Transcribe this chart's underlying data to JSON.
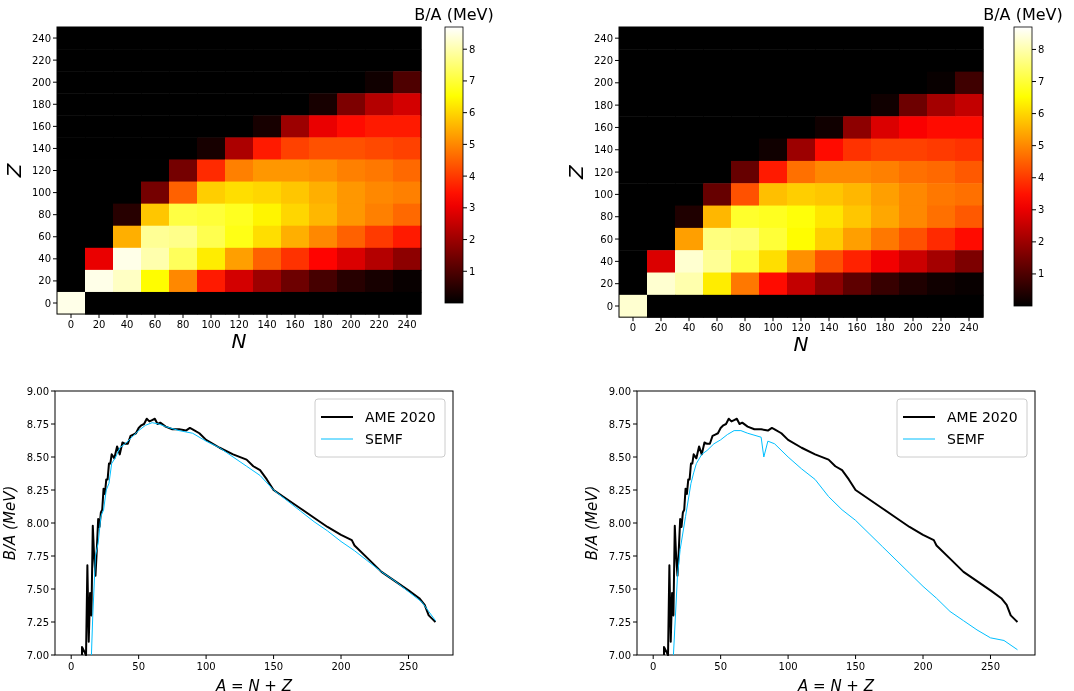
{
  "chart_data": [
    {
      "type": "heatmap",
      "xlabel": "N",
      "ylabel": "Z",
      "clabel": "B/A (MeV)",
      "categories": [
        "0",
        "20",
        "40",
        "60",
        "80",
        "100",
        "120",
        "140",
        "160",
        "180",
        "200",
        "220",
        "240"
      ],
      "y_categories": [
        "240",
        "220",
        "200",
        "180",
        "160",
        "140",
        "120",
        "100",
        "80",
        "60",
        "40",
        "20",
        "0"
      ],
      "clim": [
        0,
        8.7
      ],
      "cticks": [
        1,
        2,
        3,
        4,
        5,
        6,
        7,
        8
      ],
      "cells": [
        [
          0,
          0,
          0,
          0,
          0,
          0,
          0,
          0,
          0,
          0,
          0,
          0,
          0
        ],
        [
          0,
          0,
          0,
          0,
          0,
          0,
          0,
          0,
          0,
          0,
          0,
          0,
          0
        ],
        [
          0,
          0,
          0,
          0,
          0,
          0,
          0,
          0,
          0,
          0,
          0,
          0.2,
          1.0
        ],
        [
          0,
          0,
          0,
          0,
          0,
          0,
          0,
          0,
          0,
          0.3,
          1.6,
          2.3,
          2.7
        ],
        [
          0,
          0,
          0,
          0,
          0,
          0,
          0,
          0.3,
          2.0,
          3.0,
          3.4,
          3.6,
          3.6
        ],
        [
          0,
          0,
          0,
          0,
          0,
          0.3,
          2.2,
          3.6,
          4.1,
          4.3,
          4.3,
          4.2,
          4.1
        ],
        [
          0,
          0,
          0,
          0,
          1.5,
          3.8,
          4.9,
          5.2,
          5.2,
          5.1,
          4.9,
          4.8,
          4.6
        ],
        [
          0,
          0,
          0,
          1.5,
          4.5,
          5.9,
          6.1,
          6.0,
          5.8,
          5.5,
          5.2,
          5.0,
          4.9
        ],
        [
          0,
          0,
          0.5,
          5.8,
          7.1,
          7.0,
          6.8,
          6.4,
          6.0,
          5.6,
          5.2,
          4.9,
          4.6
        ],
        [
          0,
          0,
          5.5,
          7.8,
          7.7,
          7.2,
          6.7,
          6.1,
          5.5,
          5.0,
          4.5,
          4.0,
          3.6
        ],
        [
          0,
          3.0,
          8.5,
          8.0,
          7.3,
          6.3,
          5.3,
          4.5,
          3.9,
          3.3,
          2.8,
          2.3,
          1.8
        ],
        [
          0,
          8.5,
          8.2,
          6.5,
          5.0,
          3.6,
          2.7,
          2.0,
          1.4,
          0.9,
          0.5,
          0.3,
          0.1
        ],
        [
          8.5,
          0,
          0,
          0,
          0,
          0,
          0,
          0,
          0,
          0,
          0,
          0,
          0
        ]
      ]
    },
    {
      "type": "heatmap",
      "xlabel": "N",
      "ylabel": "Z",
      "clabel": "B/A (MeV)",
      "categories": [
        "0",
        "20",
        "40",
        "60",
        "80",
        "100",
        "120",
        "140",
        "160",
        "180",
        "200",
        "220",
        "240"
      ],
      "y_categories": [
        "240",
        "220",
        "200",
        "180",
        "160",
        "140",
        "120",
        "100",
        "80",
        "60",
        "40",
        "20",
        "0"
      ],
      "clim": [
        0,
        8.7
      ],
      "cticks": [
        1,
        2,
        3,
        4,
        5,
        6,
        7,
        8
      ],
      "cells": [
        [
          0,
          0,
          0,
          0,
          0,
          0,
          0,
          0,
          0,
          0,
          0,
          0,
          0
        ],
        [
          0,
          0,
          0,
          0,
          0,
          0,
          0,
          0,
          0,
          0,
          0,
          0,
          0
        ],
        [
          0,
          0,
          0,
          0,
          0,
          0,
          0,
          0,
          0,
          0,
          0,
          0.1,
          0.8
        ],
        [
          0,
          0,
          0,
          0,
          0,
          0,
          0,
          0,
          0,
          0.2,
          1.4,
          2.1,
          2.5
        ],
        [
          0,
          0,
          0,
          0,
          0,
          0,
          0,
          0.2,
          1.8,
          2.8,
          3.2,
          3.4,
          3.4
        ],
        [
          0,
          0,
          0,
          0,
          0,
          0.2,
          2.0,
          3.4,
          3.9,
          4.1,
          4.1,
          4.0,
          3.9
        ],
        [
          0,
          0,
          0,
          0,
          1.3,
          3.6,
          4.7,
          5.0,
          5.0,
          4.9,
          4.7,
          4.6,
          4.4
        ],
        [
          0,
          0,
          0,
          1.3,
          4.3,
          5.7,
          5.9,
          5.8,
          5.6,
          5.3,
          5.0,
          4.8,
          4.7
        ],
        [
          0,
          0,
          0.4,
          5.6,
          6.9,
          6.8,
          6.6,
          6.2,
          5.8,
          5.4,
          5.0,
          4.7,
          4.4
        ],
        [
          0,
          0,
          5.3,
          7.6,
          7.5,
          7.0,
          6.5,
          5.9,
          5.3,
          4.8,
          4.3,
          3.8,
          3.4
        ],
        [
          0,
          2.8,
          8.3,
          7.8,
          7.1,
          6.1,
          5.1,
          4.3,
          3.7,
          3.1,
          2.6,
          2.1,
          1.6
        ],
        [
          0,
          8.3,
          8.0,
          6.3,
          4.8,
          3.4,
          2.5,
          1.8,
          1.2,
          0.7,
          0.4,
          0.2,
          0.1
        ],
        [
          8.3,
          0,
          0,
          0,
          0,
          0,
          0,
          0,
          0,
          0,
          0,
          0,
          0
        ]
      ]
    },
    {
      "type": "line",
      "xlabel": "A = N + Z",
      "ylabel": "B/A (MeV)",
      "xlim": [
        -12,
        283
      ],
      "xticks": [
        0,
        50,
        100,
        150,
        200,
        250
      ],
      "ylim": [
        7,
        9
      ],
      "yticks": [
        {
          "value": 7,
          "label": "7.00"
        },
        {
          "value": 7.25,
          "label": "7.25"
        },
        {
          "value": 7.5,
          "label": "7.50"
        },
        {
          "value": 7.75,
          "label": "7.75"
        },
        {
          "value": 8,
          "label": "8.00"
        },
        {
          "value": 8.25,
          "label": "8.25"
        },
        {
          "value": 8.5,
          "label": "8.50"
        },
        {
          "value": 8.75,
          "label": "8.75"
        },
        {
          "value": 9,
          "label": "9.00"
        }
      ],
      "legend": "top right",
      "grid": false,
      "series": [
        {
          "name": "AME 2020",
          "color": "#000000",
          "x": [
            8,
            8,
            11,
            12,
            13,
            14,
            15,
            16,
            17,
            18,
            19,
            20,
            21,
            22,
            23,
            24,
            25,
            26,
            27,
            28,
            29,
            30,
            32,
            34,
            36,
            38,
            40,
            42,
            44,
            46,
            48,
            50,
            52,
            54,
            56,
            58,
            60,
            62,
            64,
            66,
            70,
            75,
            80,
            85,
            88,
            90,
            95,
            100,
            110,
            120,
            130,
            135,
            140,
            145,
            150,
            160,
            170,
            180,
            190,
            200,
            208,
            210,
            220,
            230,
            240,
            250,
            258,
            262,
            265,
            268,
            270
          ],
          "values": [
            7.0,
            7.06,
            7.0,
            7.68,
            7.1,
            7.47,
            7.3,
            7.98,
            7.75,
            7.6,
            7.8,
            8.03,
            7.97,
            8.08,
            8.1,
            8.26,
            8.22,
            8.33,
            8.33,
            8.45,
            8.45,
            8.52,
            8.49,
            8.58,
            8.52,
            8.61,
            8.6,
            8.6,
            8.66,
            8.67,
            8.68,
            8.72,
            8.74,
            8.75,
            8.79,
            8.77,
            8.78,
            8.79,
            8.75,
            8.76,
            8.73,
            8.71,
            8.71,
            8.7,
            8.72,
            8.71,
            8.68,
            8.63,
            8.57,
            8.52,
            8.48,
            8.43,
            8.4,
            8.33,
            8.25,
            8.18,
            8.11,
            8.04,
            7.97,
            7.91,
            7.87,
            7.83,
            7.73,
            7.63,
            7.56,
            7.49,
            7.43,
            7.38,
            7.3,
            7.27,
            7.25
          ]
        },
        {
          "name": "SEMF",
          "color": "#00bfff",
          "x": [
            15,
            16,
            18,
            20,
            22,
            24,
            26,
            28,
            30,
            33,
            36,
            40,
            45,
            50,
            55,
            60,
            65,
            70,
            80,
            90,
            100,
            110,
            120,
            130,
            140,
            150,
            160,
            170,
            180,
            190,
            200,
            210,
            220,
            230,
            240,
            250,
            260,
            265,
            270
          ],
          "values": [
            7.0,
            7.3,
            7.75,
            7.85,
            8.05,
            8.1,
            8.25,
            8.3,
            8.45,
            8.5,
            8.57,
            8.6,
            8.65,
            8.7,
            8.74,
            8.76,
            8.75,
            8.73,
            8.7,
            8.68,
            8.62,
            8.57,
            8.5,
            8.43,
            8.36,
            8.25,
            8.17,
            8.09,
            8.01,
            7.94,
            7.86,
            7.79,
            7.71,
            7.63,
            7.56,
            7.48,
            7.4,
            7.33,
            7.26
          ]
        }
      ]
    },
    {
      "type": "line",
      "xlabel": "A = N + Z",
      "ylabel": "B/A (MeV)",
      "xlim": [
        -12,
        283
      ],
      "xticks": [
        0,
        50,
        100,
        150,
        200,
        250
      ],
      "ylim": [
        7,
        9
      ],
      "yticks": [
        {
          "value": 7,
          "label": "7.00"
        },
        {
          "value": 7.25,
          "label": "7.25"
        },
        {
          "value": 7.5,
          "label": "7.50"
        },
        {
          "value": 7.75,
          "label": "7.75"
        },
        {
          "value": 8,
          "label": "8.00"
        },
        {
          "value": 8.25,
          "label": "8.25"
        },
        {
          "value": 8.5,
          "label": "8.50"
        },
        {
          "value": 8.75,
          "label": "8.75"
        },
        {
          "value": 9,
          "label": "9.00"
        }
      ],
      "legend": "top right",
      "grid": false,
      "series": [
        {
          "name": "AME 2020",
          "color": "#000000",
          "x": [
            8,
            8,
            11,
            12,
            13,
            14,
            15,
            16,
            17,
            18,
            19,
            20,
            21,
            22,
            23,
            24,
            25,
            26,
            27,
            28,
            29,
            30,
            32,
            34,
            36,
            38,
            40,
            42,
            44,
            46,
            48,
            50,
            52,
            54,
            56,
            58,
            60,
            62,
            64,
            66,
            70,
            75,
            80,
            85,
            88,
            90,
            95,
            100,
            110,
            120,
            130,
            135,
            140,
            145,
            150,
            160,
            170,
            180,
            190,
            200,
            208,
            210,
            220,
            230,
            240,
            250,
            258,
            262,
            265,
            268,
            270
          ],
          "values": [
            7.0,
            7.06,
            7.0,
            7.68,
            7.1,
            7.47,
            7.3,
            7.98,
            7.75,
            7.6,
            7.8,
            8.03,
            7.97,
            8.08,
            8.1,
            8.26,
            8.22,
            8.33,
            8.33,
            8.45,
            8.45,
            8.52,
            8.49,
            8.58,
            8.52,
            8.61,
            8.6,
            8.6,
            8.66,
            8.67,
            8.68,
            8.72,
            8.74,
            8.75,
            8.79,
            8.77,
            8.78,
            8.79,
            8.75,
            8.76,
            8.73,
            8.71,
            8.71,
            8.7,
            8.72,
            8.71,
            8.68,
            8.63,
            8.57,
            8.52,
            8.48,
            8.43,
            8.4,
            8.33,
            8.25,
            8.18,
            8.11,
            8.04,
            7.97,
            7.91,
            7.87,
            7.83,
            7.73,
            7.63,
            7.56,
            7.49,
            7.43,
            7.38,
            7.3,
            7.27,
            7.25
          ]
        },
        {
          "name": "SEMF",
          "color": "#00bfff",
          "x": [
            15,
            18,
            20,
            24,
            28,
            30,
            32,
            36,
            40,
            45,
            50,
            55,
            60,
            65,
            70,
            80,
            82,
            85,
            90,
            100,
            110,
            120,
            130,
            140,
            150,
            160,
            170,
            180,
            190,
            200,
            210,
            220,
            230,
            240,
            250,
            260,
            270
          ],
          "values": [
            7.0,
            7.6,
            7.8,
            8.05,
            8.3,
            8.38,
            8.45,
            8.52,
            8.55,
            8.6,
            8.63,
            8.67,
            8.7,
            8.7,
            8.68,
            8.65,
            8.5,
            8.62,
            8.6,
            8.5,
            8.41,
            8.33,
            8.2,
            8.1,
            8.02,
            7.92,
            7.82,
            7.72,
            7.62,
            7.52,
            7.43,
            7.33,
            7.26,
            7.19,
            7.13,
            7.11,
            7.04
          ]
        }
      ]
    }
  ]
}
